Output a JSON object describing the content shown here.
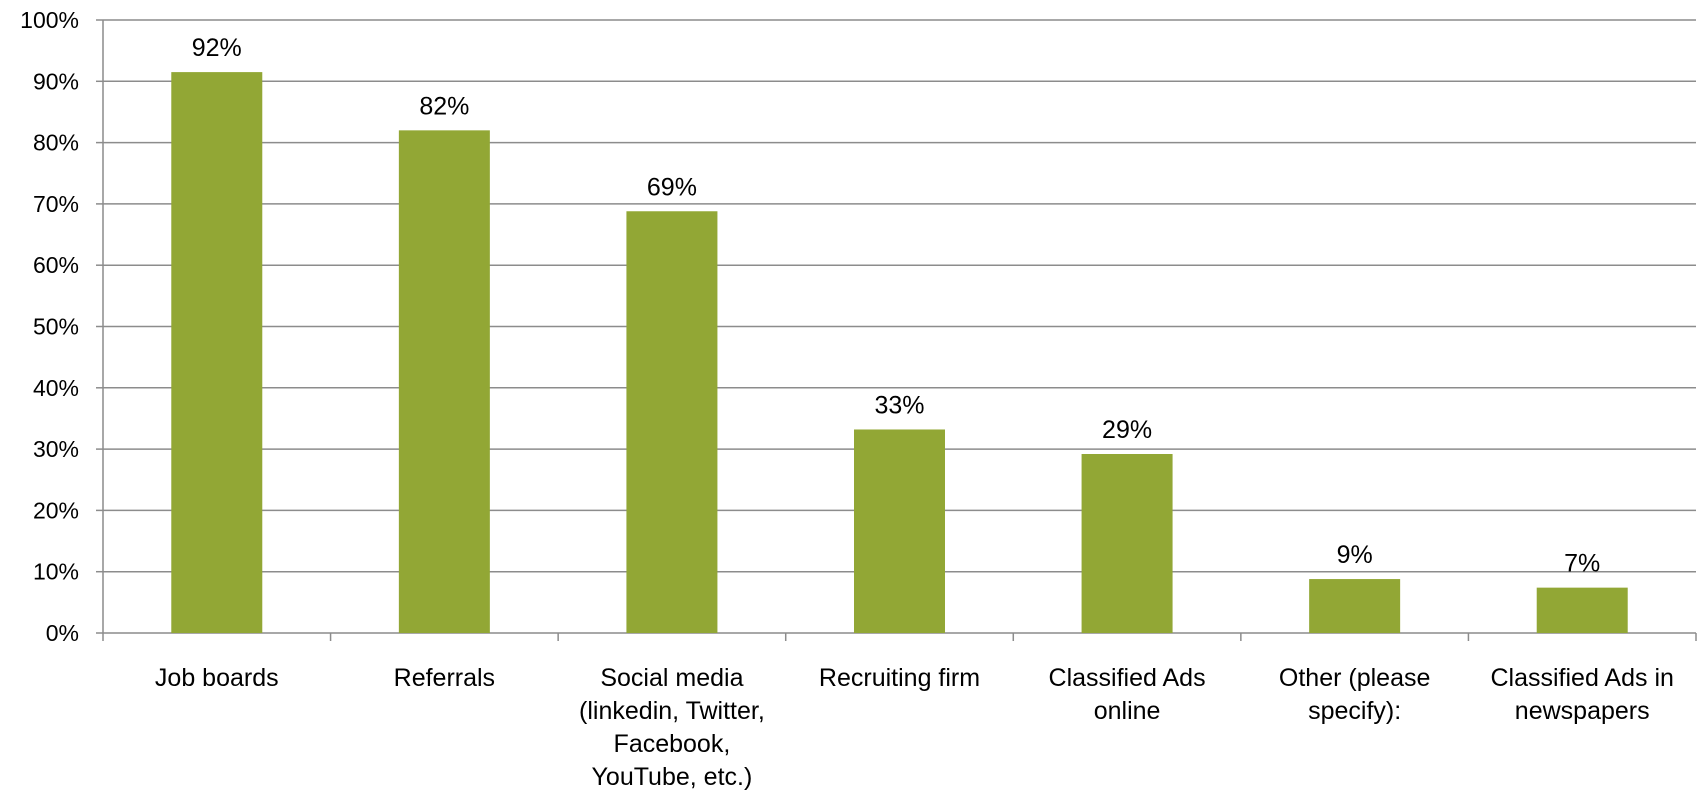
{
  "chart_data": {
    "type": "bar",
    "categories": [
      [
        "Job boards"
      ],
      [
        "Referrals"
      ],
      [
        "Social media",
        "(linkedin, Twitter,",
        "Facebook,",
        "YouTube, etc.)"
      ],
      [
        "Recruiting firm"
      ],
      [
        "Classified Ads",
        "online"
      ],
      [
        "Other (please",
        "specify):"
      ],
      [
        "Classified Ads in",
        "newspapers"
      ]
    ],
    "values": [
      91.5,
      82,
      68.8,
      33.2,
      29.2,
      8.8,
      7.4
    ],
    "data_labels": [
      "92%",
      "82%",
      "69%",
      "33%",
      "29%",
      "9%",
      "7%"
    ],
    "yticks": [
      0,
      10,
      20,
      30,
      40,
      50,
      60,
      70,
      80,
      90,
      100
    ],
    "ytick_labels": [
      "0%",
      "10%",
      "20%",
      "30%",
      "40%",
      "50%",
      "60%",
      "70%",
      "80%",
      "90%",
      "100%"
    ],
    "ylim": [
      0,
      100
    ],
    "grid": true,
    "legend": "none",
    "colors": {
      "bar": "#92a735",
      "grid": "#8c8c8c",
      "axis": "#8c8c8c"
    }
  }
}
